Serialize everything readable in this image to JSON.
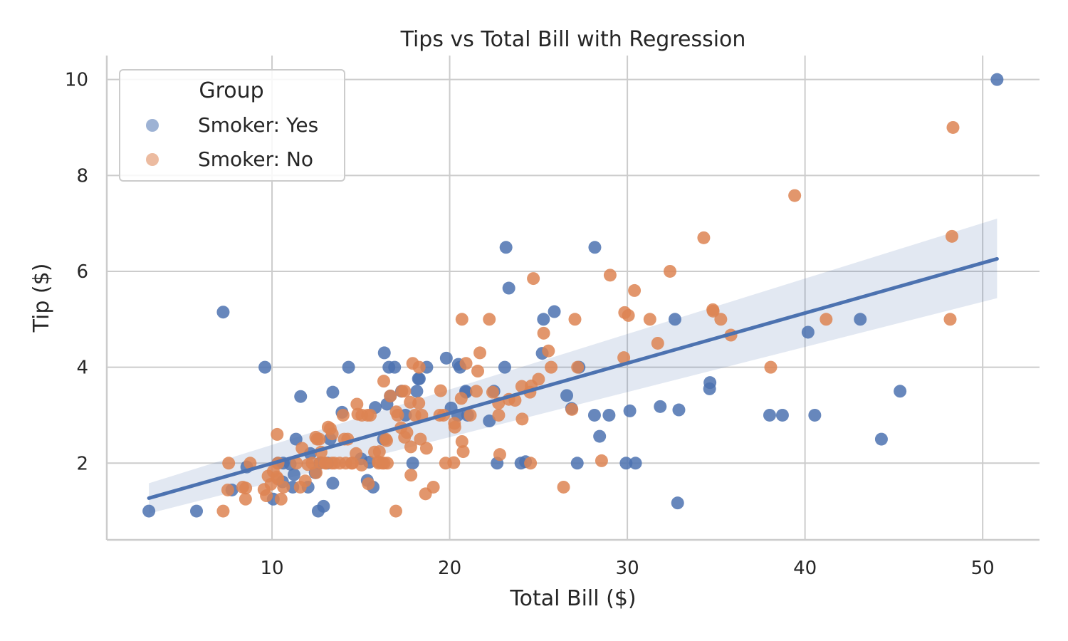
{
  "chart_data": {
    "type": "scatter",
    "title": "Tips vs Total Bill with Regression",
    "xlabel": "Total Bill ($)",
    "ylabel": "Tip ($)",
    "xlim": [
      0.7,
      53.2
    ],
    "ylim": [
      0.4,
      10.5
    ],
    "x_ticks": [
      10,
      20,
      30,
      40,
      50
    ],
    "y_ticks": [
      2,
      4,
      6,
      8,
      10
    ],
    "grid": true,
    "legend": {
      "title": "Group",
      "placement": "top-left",
      "entries": [
        "Smoker: Yes",
        "Smoker: No"
      ]
    },
    "colors": {
      "yes": "#4c72b0",
      "no": "#dd8452",
      "regression": "#4c72b0",
      "band": "#4c72b0"
    },
    "series": [
      {
        "name": "Smoker: Yes",
        "color": "#4c72b0",
        "points": [
          [
            3.07,
            1.0
          ],
          [
            5.75,
            1.0
          ],
          [
            7.25,
            5.15
          ],
          [
            7.74,
            1.44
          ],
          [
            8.58,
            1.92
          ],
          [
            9.6,
            4.0
          ],
          [
            10.07,
            1.25
          ],
          [
            10.33,
            2.0
          ],
          [
            10.59,
            1.61
          ],
          [
            10.63,
            2.0
          ],
          [
            11.02,
            1.98
          ],
          [
            11.17,
            1.5
          ],
          [
            11.24,
            1.76
          ],
          [
            11.35,
            2.5
          ],
          [
            11.61,
            3.39
          ],
          [
            12.16,
            2.2
          ],
          [
            12.03,
            1.5
          ],
          [
            12.43,
            1.8
          ],
          [
            12.6,
            1.0
          ],
          [
            12.69,
            2.0
          ],
          [
            12.9,
            1.1
          ],
          [
            13.13,
            2.0
          ],
          [
            13.27,
            2.5
          ],
          [
            13.42,
            3.48
          ],
          [
            13.42,
            1.58
          ],
          [
            13.94,
            3.06
          ],
          [
            14.31,
            4.0
          ],
          [
            15.01,
            2.09
          ],
          [
            15.36,
            1.64
          ],
          [
            15.48,
            2.02
          ],
          [
            15.69,
            1.5
          ],
          [
            15.81,
            3.16
          ],
          [
            16.27,
            2.5
          ],
          [
            16.32,
            4.3
          ],
          [
            16.58,
            4.0
          ],
          [
            16.47,
            3.23
          ],
          [
            16.66,
            3.4
          ],
          [
            16.9,
            4.0
          ],
          [
            17.29,
            3.5
          ],
          [
            17.51,
            3.0
          ],
          [
            17.92,
            2.0
          ],
          [
            18.15,
            3.5
          ],
          [
            18.24,
            3.76
          ],
          [
            18.29,
            3.76
          ],
          [
            18.71,
            4.0
          ],
          [
            19.81,
            4.19
          ],
          [
            20.08,
            3.15
          ],
          [
            20.45,
            3.0
          ],
          [
            20.49,
            4.06
          ],
          [
            20.58,
            4.0
          ],
          [
            20.92,
            3.48
          ],
          [
            20.9,
            3.5
          ],
          [
            21.01,
            3.0
          ],
          [
            22.23,
            2.88
          ],
          [
            22.49,
            3.5
          ],
          [
            22.67,
            2.0
          ],
          [
            23.1,
            4.0
          ],
          [
            23.17,
            6.5
          ],
          [
            23.33,
            5.65
          ],
          [
            24.01,
            2.0
          ],
          [
            24.27,
            2.03
          ],
          [
            25.28,
            5.0
          ],
          [
            25.21,
            4.29
          ],
          [
            25.89,
            5.16
          ],
          [
            26.59,
            3.41
          ],
          [
            26.86,
            3.14
          ],
          [
            27.18,
            2.0
          ],
          [
            27.28,
            4.0
          ],
          [
            28.17,
            6.5
          ],
          [
            28.15,
            3.0
          ],
          [
            28.44,
            2.56
          ],
          [
            28.97,
            3.0
          ],
          [
            29.93,
            2.0
          ],
          [
            30.14,
            3.09
          ],
          [
            30.46,
            2.0
          ],
          [
            31.85,
            3.18
          ],
          [
            32.68,
            5.0
          ],
          [
            32.83,
            1.17
          ],
          [
            32.9,
            3.11
          ],
          [
            34.63,
            3.55
          ],
          [
            34.65,
            3.68
          ],
          [
            38.01,
            3.0
          ],
          [
            38.73,
            3.0
          ],
          [
            40.17,
            4.73
          ],
          [
            40.55,
            3.0
          ],
          [
            43.11,
            5.0
          ],
          [
            44.3,
            2.5
          ],
          [
            45.35,
            3.5
          ],
          [
            50.81,
            10.0
          ]
        ]
      },
      {
        "name": "Smoker: No",
        "color": "#dd8452",
        "points": [
          [
            7.25,
            1.0
          ],
          [
            7.56,
            2.0
          ],
          [
            7.51,
            1.44
          ],
          [
            8.35,
            1.5
          ],
          [
            8.51,
            1.25
          ],
          [
            8.52,
            1.48
          ],
          [
            8.77,
            2.0
          ],
          [
            9.55,
            1.45
          ],
          [
            9.68,
            1.32
          ],
          [
            9.78,
            1.73
          ],
          [
            9.94,
            1.56
          ],
          [
            10.07,
            1.83
          ],
          [
            10.29,
            2.6
          ],
          [
            10.33,
            1.67
          ],
          [
            10.27,
            1.71
          ],
          [
            10.34,
            2.0
          ],
          [
            10.51,
            1.25
          ],
          [
            10.65,
            1.5
          ],
          [
            11.38,
            2.0
          ],
          [
            11.59,
            1.5
          ],
          [
            11.69,
            2.31
          ],
          [
            11.87,
            1.63
          ],
          [
            12.02,
            1.97
          ],
          [
            12.26,
            2.0
          ],
          [
            12.46,
            2.54
          ],
          [
            12.54,
            2.5
          ],
          [
            12.48,
            1.8
          ],
          [
            12.66,
            2.5
          ],
          [
            12.74,
            2.01
          ],
          [
            12.76,
            2.23
          ],
          [
            13.0,
            2.0
          ],
          [
            13.03,
            2.0
          ],
          [
            13.16,
            2.75
          ],
          [
            13.28,
            2.72
          ],
          [
            13.37,
            2.0
          ],
          [
            13.39,
            2.61
          ],
          [
            13.51,
            2.0
          ],
          [
            13.81,
            2.0
          ],
          [
            14.0,
            3.0
          ],
          [
            14.07,
            2.5
          ],
          [
            14.26,
            2.5
          ],
          [
            14.15,
            2.0
          ],
          [
            14.48,
            2.0
          ],
          [
            14.52,
            2.0
          ],
          [
            14.73,
            2.2
          ],
          [
            14.78,
            3.23
          ],
          [
            14.83,
            3.02
          ],
          [
            15.04,
            1.96
          ],
          [
            15.06,
            3.0
          ],
          [
            15.42,
            1.57
          ],
          [
            15.38,
            3.0
          ],
          [
            15.53,
            3.0
          ],
          [
            15.77,
            2.23
          ],
          [
            15.98,
            2.03
          ],
          [
            16.0,
            2.0
          ],
          [
            16.04,
            2.24
          ],
          [
            16.21,
            2.0
          ],
          [
            16.29,
            3.71
          ],
          [
            16.31,
            2.0
          ],
          [
            16.4,
            2.5
          ],
          [
            16.45,
            2.47
          ],
          [
            16.49,
            2.0
          ],
          [
            16.66,
            3.4
          ],
          [
            16.97,
            1.0
          ],
          [
            16.99,
            3.07
          ],
          [
            17.07,
            3.0
          ],
          [
            17.26,
            2.74
          ],
          [
            17.31,
            3.5
          ],
          [
            17.46,
            2.54
          ],
          [
            17.47,
            3.5
          ],
          [
            17.59,
            2.64
          ],
          [
            17.78,
            3.27
          ],
          [
            17.81,
            2.34
          ],
          [
            17.82,
            1.75
          ],
          [
            17.92,
            4.08
          ],
          [
            18.04,
            3.0
          ],
          [
            18.26,
            3.25
          ],
          [
            18.28,
            4.0
          ],
          [
            18.35,
            2.5
          ],
          [
            18.43,
            3.0
          ],
          [
            18.64,
            1.36
          ],
          [
            18.69,
            2.31
          ],
          [
            19.08,
            1.5
          ],
          [
            19.44,
            3.0
          ],
          [
            19.49,
            3.51
          ],
          [
            19.65,
            3.0
          ],
          [
            19.77,
            2.0
          ],
          [
            20.23,
            2.01
          ],
          [
            20.27,
            2.83
          ],
          [
            20.29,
            2.75
          ],
          [
            20.65,
            3.35
          ],
          [
            20.69,
            2.45
          ],
          [
            20.76,
            2.24
          ],
          [
            20.69,
            5.0
          ],
          [
            20.92,
            4.08
          ],
          [
            21.16,
            3.0
          ],
          [
            21.5,
            3.5
          ],
          [
            21.58,
            3.92
          ],
          [
            21.7,
            4.3
          ],
          [
            22.23,
            5.0
          ],
          [
            22.42,
            3.48
          ],
          [
            22.75,
            3.25
          ],
          [
            22.82,
            2.18
          ],
          [
            22.76,
            3.0
          ],
          [
            23.33,
            3.33
          ],
          [
            23.68,
            3.31
          ],
          [
            24.06,
            3.6
          ],
          [
            24.08,
            2.92
          ],
          [
            24.52,
            3.48
          ],
          [
            24.55,
            2.0
          ],
          [
            24.71,
            5.85
          ],
          [
            24.59,
            3.61
          ],
          [
            25.0,
            3.75
          ],
          [
            25.29,
            4.71
          ],
          [
            25.56,
            4.34
          ],
          [
            25.71,
            4.0
          ],
          [
            26.41,
            1.5
          ],
          [
            26.88,
            3.12
          ],
          [
            27.05,
            5.0
          ],
          [
            27.2,
            4.0
          ],
          [
            28.55,
            2.05
          ],
          [
            29.03,
            5.92
          ],
          [
            29.8,
            4.2
          ],
          [
            29.85,
            5.14
          ],
          [
            30.06,
            5.08
          ],
          [
            30.4,
            5.6
          ],
          [
            31.27,
            5.0
          ],
          [
            31.71,
            4.5
          ],
          [
            32.4,
            6.0
          ],
          [
            34.3,
            6.7
          ],
          [
            34.81,
            5.2
          ],
          [
            34.83,
            5.17
          ],
          [
            35.26,
            5.0
          ],
          [
            35.83,
            4.67
          ],
          [
            38.07,
            4.0
          ],
          [
            39.42,
            7.58
          ],
          [
            41.19,
            5.0
          ],
          [
            48.17,
            5.0
          ],
          [
            48.27,
            6.73
          ],
          [
            48.33,
            9.0
          ]
        ]
      }
    ],
    "regression": {
      "x": [
        3.07,
        50.81
      ],
      "y": [
        1.27,
        6.26
      ],
      "ci_lower": [
        0.95,
        5.44
      ],
      "ci_upper": [
        1.58,
        7.1
      ]
    }
  }
}
